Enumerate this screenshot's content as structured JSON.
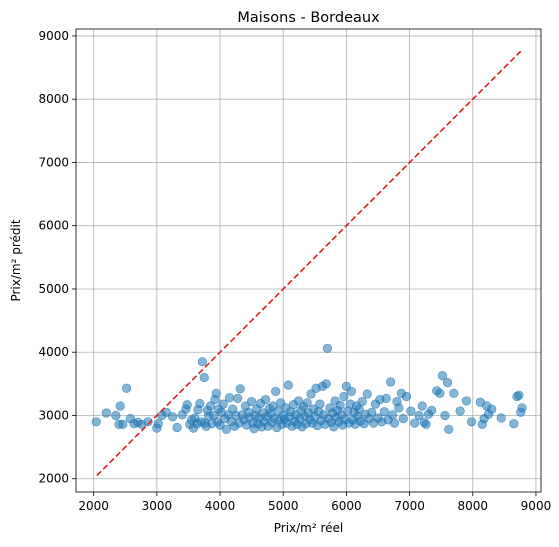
{
  "chart_data": {
    "type": "scatter",
    "title": "Maisons - Bordeaux",
    "xlabel": "Prix/m² réel",
    "ylabel": "Prix/m² prédit",
    "xlim": [
      1720,
      9080
    ],
    "ylim": [
      1790,
      9110
    ],
    "xticks": [
      2000,
      3000,
      4000,
      5000,
      6000,
      7000,
      8000,
      9000
    ],
    "yticks": [
      2000,
      3000,
      4000,
      5000,
      6000,
      7000,
      8000,
      9000
    ],
    "grid": true,
    "point_color": "#1f77b4",
    "point_alpha": 0.55,
    "reference_line": {
      "x": [
        2050,
        8760
      ],
      "y": [
        2050,
        8760
      ],
      "color": "#e31a1c",
      "style": "dashed"
    },
    "points": [
      [
        2040,
        2900
      ],
      [
        2200,
        3040
      ],
      [
        2350,
        3000
      ],
      [
        2400,
        2860
      ],
      [
        2420,
        3150
      ],
      [
        2460,
        2860
      ],
      [
        2520,
        3430
      ],
      [
        2580,
        2950
      ],
      [
        2640,
        2870
      ],
      [
        2700,
        2890
      ],
      [
        2760,
        2860
      ],
      [
        2860,
        2900
      ],
      [
        3000,
        2800
      ],
      [
        3020,
        2870
      ],
      [
        3080,
        3000
      ],
      [
        3150,
        3050
      ],
      [
        3250,
        2980
      ],
      [
        3320,
        2810
      ],
      [
        3400,
        3010
      ],
      [
        3460,
        3100
      ],
      [
        3480,
        3170
      ],
      [
        3520,
        2860
      ],
      [
        3550,
        2930
      ],
      [
        3580,
        2800
      ],
      [
        3600,
        2960
      ],
      [
        3640,
        2870
      ],
      [
        3650,
        3090
      ],
      [
        3680,
        3190
      ],
      [
        3700,
        2900
      ],
      [
        3720,
        3850
      ],
      [
        3750,
        3600
      ],
      [
        3760,
        2880
      ],
      [
        3780,
        2830
      ],
      [
        3800,
        3080
      ],
      [
        3820,
        2990
      ],
      [
        3850,
        3150
      ],
      [
        3870,
        2870
      ],
      [
        3900,
        3000
      ],
      [
        3920,
        3250
      ],
      [
        3940,
        3350
      ],
      [
        3960,
        2900
      ],
      [
        3980,
        3100
      ],
      [
        4000,
        2850
      ],
      [
        4020,
        3050
      ],
      [
        4050,
        3180
      ],
      [
        4080,
        2950
      ],
      [
        4100,
        2780
      ],
      [
        4130,
        3010
      ],
      [
        4150,
        3280
      ],
      [
        4180,
        2900
      ],
      [
        4200,
        3100
      ],
      [
        4230,
        2830
      ],
      [
        4250,
        3000
      ],
      [
        4280,
        3270
      ],
      [
        4300,
        2880
      ],
      [
        4320,
        3420
      ],
      [
        4350,
        3010
      ],
      [
        4380,
        2930
      ],
      [
        4400,
        3150
      ],
      [
        4420,
        2850
      ],
      [
        4450,
        3050
      ],
      [
        4470,
        2970
      ],
      [
        4500,
        3220
      ],
      [
        4520,
        2880
      ],
      [
        4540,
        2790
      ],
      [
        4560,
        3000
      ],
      [
        4580,
        3100
      ],
      [
        4600,
        2870
      ],
      [
        4620,
        2960
      ],
      [
        4640,
        3190
      ],
      [
        4660,
        2820
      ],
      [
        4680,
        3040
      ],
      [
        4700,
        2900
      ],
      [
        4720,
        3250
      ],
      [
        4740,
        2980
      ],
      [
        4760,
        2830
      ],
      [
        4780,
        3110
      ],
      [
        4800,
        3030
      ],
      [
        4820,
        2890
      ],
      [
        4840,
        3150
      ],
      [
        4860,
        2950
      ],
      [
        4880,
        3380
      ],
      [
        4900,
        2810
      ],
      [
        4920,
        3070
      ],
      [
        4940,
        2930
      ],
      [
        4960,
        3200
      ],
      [
        4980,
        2860
      ],
      [
        5000,
        3000
      ],
      [
        5020,
        2940
      ],
      [
        5040,
        3120
      ],
      [
        5060,
        2880
      ],
      [
        5080,
        3480
      ],
      [
        5100,
        2980
      ],
      [
        5120,
        3060
      ],
      [
        5140,
        2830
      ],
      [
        5160,
        3170
      ],
      [
        5180,
        2910
      ],
      [
        5200,
        3010
      ],
      [
        5220,
        2860
      ],
      [
        5240,
        3230
      ],
      [
        5260,
        2950
      ],
      [
        5280,
        3080
      ],
      [
        5300,
        2820
      ],
      [
        5320,
        3140
      ],
      [
        5340,
        2990
      ],
      [
        5360,
        2870
      ],
      [
        5380,
        3200
      ],
      [
        5400,
        3040
      ],
      [
        5420,
        2930
      ],
      [
        5440,
        3340
      ],
      [
        5460,
        2880
      ],
      [
        5480,
        3100
      ],
      [
        5500,
        2980
      ],
      [
        5520,
        3430
      ],
      [
        5540,
        2840
      ],
      [
        5560,
        3060
      ],
      [
        5580,
        3180
      ],
      [
        5600,
        2920
      ],
      [
        5620,
        3460
      ],
      [
        5640,
        3010
      ],
      [
        5660,
        2860
      ],
      [
        5680,
        3500
      ],
      [
        5700,
        4060
      ],
      [
        5720,
        2950
      ],
      [
        5740,
        3120
      ],
      [
        5760,
        2890
      ],
      [
        5780,
        3040
      ],
      [
        5800,
        2820
      ],
      [
        5820,
        3230
      ],
      [
        5840,
        2970
      ],
      [
        5860,
        3080
      ],
      [
        5880,
        2900
      ],
      [
        5900,
        3160
      ],
      [
        5920,
        3010
      ],
      [
        5940,
        2850
      ],
      [
        5960,
        3300
      ],
      [
        5980,
        2940
      ],
      [
        6000,
        3460
      ],
      [
        6020,
        3070
      ],
      [
        6040,
        2880
      ],
      [
        6060,
        3180
      ],
      [
        6080,
        3380
      ],
      [
        6100,
        2930
      ],
      [
        6120,
        3050
      ],
      [
        6140,
        2860
      ],
      [
        6160,
        3150
      ],
      [
        6180,
        2990
      ],
      [
        6200,
        3100
      ],
      [
        6220,
        2910
      ],
      [
        6250,
        3220
      ],
      [
        6280,
        2870
      ],
      [
        6300,
        3020
      ],
      [
        6330,
        3340
      ],
      [
        6360,
        2950
      ],
      [
        6400,
        3050
      ],
      [
        6430,
        2880
      ],
      [
        6460,
        3180
      ],
      [
        6500,
        2960
      ],
      [
        6530,
        3250
      ],
      [
        6560,
        2900
      ],
      [
        6600,
        3060
      ],
      [
        6630,
        3270
      ],
      [
        6660,
        2930
      ],
      [
        6700,
        3530
      ],
      [
        6730,
        3010
      ],
      [
        6760,
        2880
      ],
      [
        6800,
        3220
      ],
      [
        6830,
        3120
      ],
      [
        6870,
        3350
      ],
      [
        6900,
        2950
      ],
      [
        6950,
        3300
      ],
      [
        7020,
        3070
      ],
      [
        7080,
        2880
      ],
      [
        7150,
        3000
      ],
      [
        7200,
        3150
      ],
      [
        7230,
        2890
      ],
      [
        7260,
        2860
      ],
      [
        7300,
        3020
      ],
      [
        7350,
        3080
      ],
      [
        7430,
        3390
      ],
      [
        7480,
        3350
      ],
      [
        7520,
        3630
      ],
      [
        7560,
        3000
      ],
      [
        7600,
        3520
      ],
      [
        7620,
        2780
      ],
      [
        7700,
        3350
      ],
      [
        7800,
        3070
      ],
      [
        7900,
        3230
      ],
      [
        7980,
        2900
      ],
      [
        8120,
        3210
      ],
      [
        8150,
        2860
      ],
      [
        8180,
        2950
      ],
      [
        8220,
        3150
      ],
      [
        8250,
        3020
      ],
      [
        8300,
        3100
      ],
      [
        8450,
        2960
      ],
      [
        8650,
        2870
      ],
      [
        8700,
        3300
      ],
      [
        8730,
        3320
      ],
      [
        8760,
        3050
      ],
      [
        8780,
        3120
      ]
    ]
  }
}
